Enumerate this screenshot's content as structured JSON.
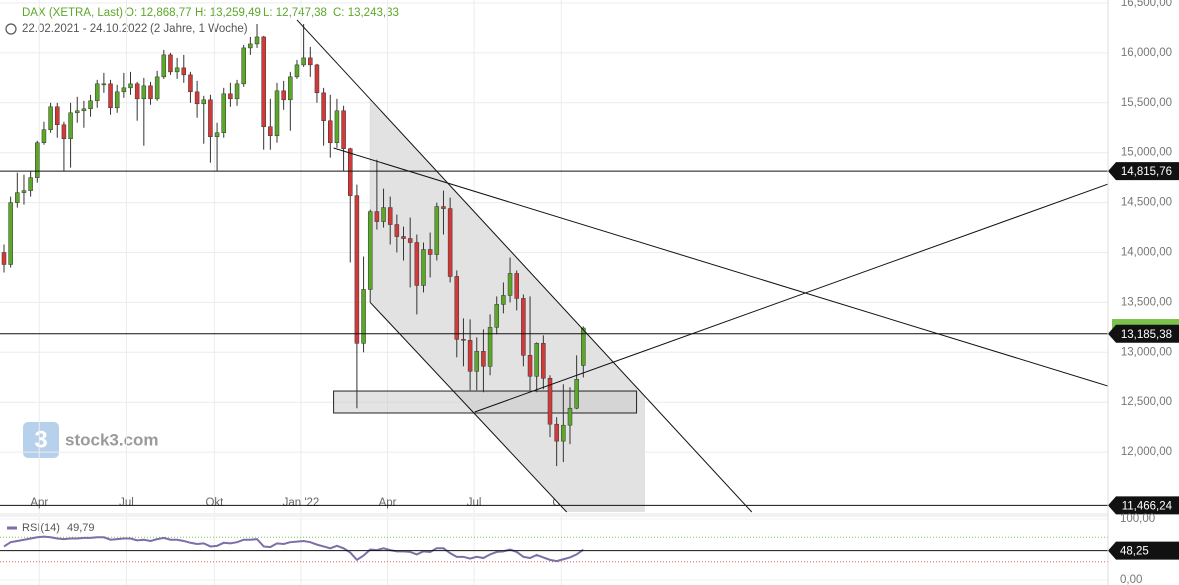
{
  "chart_data": {
    "type": "candlestick",
    "title": "DAX (XETRA, Last)",
    "ohlc_text": [
      "O: 12,868,77",
      "H: 13,259,49",
      "L: 12,747,38",
      "C: 13,243,33"
    ],
    "period": "22.02.2021 - 24.10.2022",
    "period_note": "(2 Jahre, 1 Woche)",
    "watermark": "stock3.com",
    "up_color": "#5ba829",
    "down_color": "#d23a3a",
    "grid": true,
    "xlim": [
      -0.6,
      165.8
    ],
    "xticks": [
      {
        "value": 5.3,
        "label": "Apr"
      },
      {
        "value": 18.4,
        "label": "Jul"
      },
      {
        "value": 31.6,
        "label": "Okt"
      },
      {
        "value": 44.6,
        "label": "Jan '22"
      },
      {
        "value": 57.6,
        "label": "Apr"
      },
      {
        "value": 70.6,
        "label": "Jul"
      },
      {
        "value": 83.7,
        "label": "Okt"
      }
    ],
    "ylim": [
      11400,
      16530
    ],
    "yticks": [
      {
        "value": 12000,
        "label": "12,000,00"
      },
      {
        "value": 12500,
        "label": "12,500,00"
      },
      {
        "value": 13000,
        "label": "13,000,00"
      },
      {
        "value": 13500,
        "label": "13,500,00"
      },
      {
        "value": 14000,
        "label": "14,000,00"
      },
      {
        "value": 14500,
        "label": "14,500,00"
      },
      {
        "value": 15000,
        "label": "15,000,00"
      },
      {
        "value": 15500,
        "label": "15,500,00"
      },
      {
        "value": 16000,
        "label": "16,000,00"
      },
      {
        "value": 16500,
        "label": "16,500,00"
      }
    ],
    "open": [
      14000,
      13880,
      14500,
      14600,
      14620,
      14750,
      15100,
      15230,
      15460,
      15280,
      15140,
      15400,
      15420,
      15440,
      15520,
      15690,
      15690,
      15450,
      15610,
      15650,
      15690,
      15540,
      15670,
      15540,
      15760,
      15980,
      15810,
      15850,
      15780,
      15610,
      15490,
      15530,
      15160,
      15200,
      15590,
      15540,
      15690,
      16050,
      16090,
      16160,
      15260,
      15170,
      15620,
      15530,
      15760,
      15880,
      15950,
      15880,
      15600,
      15320,
      15100,
      15420,
      15040,
      14570,
      13090,
      13630,
      14410,
      14310,
      14450,
      14280,
      14160,
      14140,
      14100,
      13670,
      14030,
      13980,
      14460,
      14440,
      13760,
      13130,
      13120,
      12810,
      13010,
      12860,
      13250,
      13480,
      13570,
      13790,
      13540,
      12970,
      12760,
      13090,
      12740,
      12280,
      12110,
      12270,
      12440,
      12868.77
    ],
    "high": [
      14080,
      14560,
      14800,
      14780,
      14810,
      15120,
      15310,
      15500,
      15500,
      15310,
      15500,
      15560,
      15520,
      15580,
      15730,
      15800,
      15730,
      15680,
      15800,
      15810,
      15710,
      15750,
      15710,
      15820,
      16030,
      16000,
      15950,
      15980,
      15810,
      15720,
      15570,
      15580,
      15300,
      15650,
      15700,
      15730,
      16080,
      16160,
      16290,
      16170,
      15540,
      15700,
      15720,
      15810,
      15930,
      16290,
      16060,
      15890,
      15650,
      15580,
      15540,
      15470,
      15050,
      14680,
      13960,
      14430,
      14930,
      14640,
      14560,
      14380,
      14260,
      14350,
      14180,
      14100,
      14200,
      14500,
      14620,
      14550,
      13820,
      13340,
      13330,
      13150,
      13230,
      13380,
      13560,
      13700,
      13950,
      13820,
      13580,
      13560,
      13100,
      13170,
      12770,
      12350,
      12680,
      12650,
      12970,
      13259.49
    ],
    "low": [
      13800,
      13850,
      14450,
      14480,
      14560,
      14700,
      15080,
      15200,
      15150,
      14820,
      14850,
      15300,
      15250,
      15360,
      15450,
      15600,
      15380,
      15400,
      15550,
      15580,
      15320,
      15070,
      15480,
      15520,
      15740,
      15780,
      15740,
      15700,
      15500,
      15350,
      15090,
      14900,
      14820,
      15150,
      15460,
      15470,
      15660,
      15980,
      16050,
      15030,
      15030,
      15100,
      15430,
      15220,
      15740,
      15860,
      15760,
      15500,
      15070,
      14950,
      15050,
      14820,
      13900,
      12440,
      13000,
      13500,
      14230,
      14250,
      14080,
      14000,
      13920,
      13650,
      13380,
      13600,
      13750,
      13920,
      14180,
      13700,
      12950,
      12860,
      12620,
      12620,
      12600,
      12770,
      13180,
      13390,
      13500,
      13420,
      12860,
      12620,
      12600,
      12630,
      12150,
      11860,
      11900,
      12080,
      12430,
      12747.38
    ],
    "close": [
      13880,
      14500,
      14600,
      14620,
      14750,
      15100,
      15230,
      15460,
      15280,
      15140,
      15400,
      15420,
      15440,
      15520,
      15690,
      15690,
      15450,
      15610,
      15650,
      15690,
      15540,
      15670,
      15540,
      15760,
      15980,
      15810,
      15850,
      15780,
      15610,
      15490,
      15530,
      15160,
      15200,
      15590,
      15540,
      15690,
      16050,
      16090,
      16160,
      15260,
      15170,
      15620,
      15530,
      15760,
      15880,
      15950,
      15880,
      15600,
      15320,
      15100,
      15420,
      15040,
      14570,
      13090,
      13630,
      14410,
      14310,
      14450,
      14280,
      14160,
      14140,
      14100,
      13670,
      14030,
      13980,
      14460,
      14440,
      13760,
      13130,
      13120,
      12810,
      13010,
      12860,
      13250,
      13480,
      13570,
      13790,
      13540,
      12970,
      12760,
      13090,
      12740,
      12280,
      12110,
      12270,
      12440,
      12730,
      13243.33
    ],
    "hlines": [
      {
        "value": 14815.76,
        "label": "14,815,76"
      },
      {
        "value": 13185.38,
        "label": "13,185,38"
      },
      {
        "value": 11466.24,
        "label": "11,466,24"
      }
    ],
    "trendlines": [
      {
        "x": [
          44,
          112.3
        ],
        "y": [
          16330,
          11400
        ]
      },
      {
        "x": [
          49.5,
          165.8
        ],
        "y": [
          15047,
          12662
        ]
      },
      {
        "x": [
          70.7,
          165.8
        ],
        "y": [
          12402,
          14686
        ]
      },
      {
        "x": [
          55,
          84.5
        ],
        "y": [
          13500,
          11400
        ]
      }
    ],
    "zone": {
      "x": [
        49.5,
        95
      ],
      "y": [
        12612,
        12392
      ]
    },
    "rsi": {
      "name": "RSI(14)",
      "value_label": "49,79",
      "color": "#7b6fa8",
      "ylim": [
        0,
        100
      ],
      "yticks": [
        {
          "value": 0,
          "label": "0,00"
        },
        {
          "value": 100,
          "label": "100,00"
        }
      ],
      "upper": 70,
      "lower": 30,
      "hline": {
        "value": 48.25,
        "label": "48,25"
      },
      "values": [
        55,
        62,
        64,
        66,
        68,
        70,
        71,
        70,
        68,
        67,
        68,
        68,
        69,
        69,
        70,
        70,
        66,
        67,
        68,
        68,
        65,
        66,
        64,
        67,
        69,
        66,
        66,
        64,
        61,
        59,
        60,
        55,
        56,
        61,
        60,
        62,
        66,
        66,
        67,
        55,
        54,
        60,
        59,
        62,
        63,
        64,
        62,
        58,
        55,
        52,
        56,
        52,
        45,
        33,
        40,
        50,
        49,
        52,
        49,
        47,
        47,
        46,
        42,
        47,
        46,
        52,
        52,
        44,
        38,
        38,
        35,
        38,
        36,
        42,
        46,
        47,
        50,
        46,
        38,
        36,
        41,
        37,
        33,
        31,
        34,
        37,
        42,
        49.79
      ]
    }
  }
}
